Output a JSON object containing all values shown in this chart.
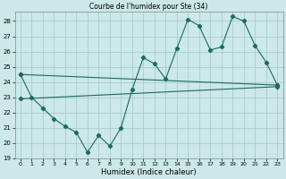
{
  "title": "Courbe de l'humidex pour Ste (34)",
  "xlabel": "Humidex (Indice chaleur)",
  "bg_color": "#cce8e8",
  "grid_color": "#aacccc",
  "line_color": "#1a6b5a",
  "xlim": [
    -0.5,
    23.5
  ],
  "ylim": [
    19,
    28.6
  ],
  "yticks": [
    19,
    20,
    21,
    22,
    23,
    24,
    25,
    26,
    27,
    28
  ],
  "xticks": [
    0,
    1,
    2,
    3,
    4,
    5,
    6,
    7,
    8,
    9,
    10,
    11,
    12,
    13,
    14,
    15,
    16,
    17,
    18,
    19,
    20,
    21,
    22,
    23
  ],
  "zigzag_x": [
    0,
    1,
    2,
    3,
    4,
    5,
    6,
    7,
    8,
    9,
    10,
    11,
    12,
    13,
    14,
    15,
    16,
    17,
    18,
    19,
    20,
    21,
    22,
    23
  ],
  "zigzag_y": [
    24.5,
    23.0,
    22.3,
    21.6,
    21.1,
    20.7,
    19.4,
    20.5,
    19.8,
    21.0,
    23.5,
    25.6,
    25.2,
    24.2,
    26.2,
    28.1,
    27.7,
    26.1,
    26.3,
    28.3,
    28.0,
    26.4,
    25.3,
    23.8
  ],
  "upper_line_x": [
    0,
    23
  ],
  "upper_line_y": [
    24.5,
    23.8
  ],
  "lower_line_x": [
    0,
    23
  ],
  "lower_line_y": [
    22.9,
    23.7
  ]
}
